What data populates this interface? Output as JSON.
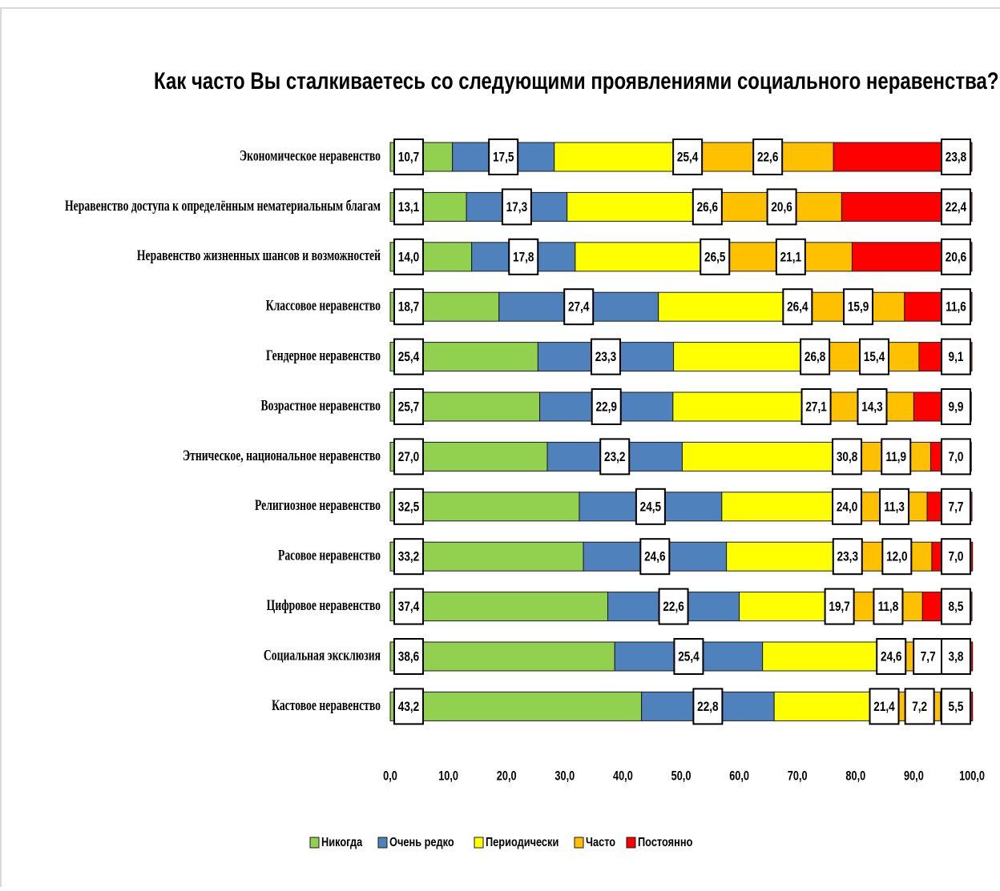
{
  "chart_data": {
    "type": "stacked-bar-horizontal",
    "title": "Как часто Вы сталкиваетесь со следующими проявлениями социального неравенства? (в %)",
    "categories": [
      "Экономическое неравенство",
      "Неравенство доступа к определённым нематериальным благам",
      "Неравенство жизненных шансов и возможностей",
      "Классовое неравенство",
      "Гендерное неравенство",
      "Возрастное неравенство",
      "Этническое, национальное неравенство",
      "Религиозное неравенство",
      "Расовое неравенство",
      "Цифровое неравенство",
      "Социальная эксклюзия",
      "Кастовое неравенство"
    ],
    "series": [
      {
        "name": "Никогда",
        "color": "#92d050",
        "values": [
          10.7,
          13.1,
          14.0,
          18.7,
          25.4,
          25.7,
          27.0,
          32.5,
          33.2,
          37.4,
          38.6,
          43.2
        ],
        "value_labels": [
          "10,7",
          "13,1",
          "14,0",
          "18,7",
          "25,4",
          "25,7",
          "27,0",
          "32,5",
          "33,2",
          "37,4",
          "38,6",
          "43,2"
        ]
      },
      {
        "name": "Очень редко",
        "color": "#4f81bd",
        "values": [
          17.5,
          17.3,
          17.8,
          27.4,
          23.3,
          22.9,
          23.2,
          24.5,
          24.6,
          22.6,
          25.4,
          22.8
        ],
        "value_labels": [
          "17,5",
          "17,3",
          "17,8",
          "27,4",
          "23,3",
          "22,9",
          "23,2",
          "24,5",
          "24,6",
          "22,6",
          "25,4",
          "22,8"
        ]
      },
      {
        "name": "Периодически",
        "color": "#ffff00",
        "values": [
          25.4,
          26.6,
          26.5,
          26.4,
          26.8,
          27.1,
          30.8,
          24.0,
          23.3,
          19.7,
          24.6,
          21.4
        ],
        "value_labels": [
          "25,4",
          "26,6",
          "26,5",
          "26,4",
          "26,8",
          "27,1",
          "30,8",
          "24,0",
          "23,3",
          "19,7",
          "24,6",
          "21,4"
        ]
      },
      {
        "name": "Часто",
        "color": "#ffc000",
        "values": [
          22.6,
          20.6,
          21.1,
          15.9,
          15.4,
          14.3,
          11.9,
          11.3,
          12.0,
          11.8,
          7.7,
          7.2
        ],
        "value_labels": [
          "22,6",
          "20,6",
          "21,1",
          "15,9",
          "15,4",
          "14,3",
          "11,9",
          "11,3",
          "12,0",
          "11,8",
          "7,7",
          "7,2"
        ]
      },
      {
        "name": "Постоянно",
        "color": "#ff0000",
        "values": [
          23.8,
          22.4,
          20.6,
          11.6,
          9.1,
          9.9,
          7.0,
          7.7,
          7.0,
          8.5,
          3.8,
          5.5
        ],
        "value_labels": [
          "23,8",
          "22,4",
          "20,6",
          "11,6",
          "9,1",
          "9,9",
          "7,0",
          "7,7",
          "7,0",
          "8,5",
          "3,8",
          "5,5"
        ]
      }
    ],
    "xlim": [
      0,
      100
    ],
    "xticks": [
      {
        "value": 0,
        "label": "0,0"
      },
      {
        "value": 10,
        "label": "10,0"
      },
      {
        "value": 20,
        "label": "20,0"
      },
      {
        "value": 30,
        "label": "30,0"
      },
      {
        "value": 40,
        "label": "40,0"
      },
      {
        "value": 50,
        "label": "50,0"
      },
      {
        "value": 60,
        "label": "60,0"
      },
      {
        "value": 70,
        "label": "70,0"
      },
      {
        "value": 80,
        "label": "80,0"
      },
      {
        "value": 90,
        "label": "90,0"
      },
      {
        "value": 100,
        "label": "100,0"
      }
    ],
    "grid": false,
    "legend": "bottom"
  }
}
